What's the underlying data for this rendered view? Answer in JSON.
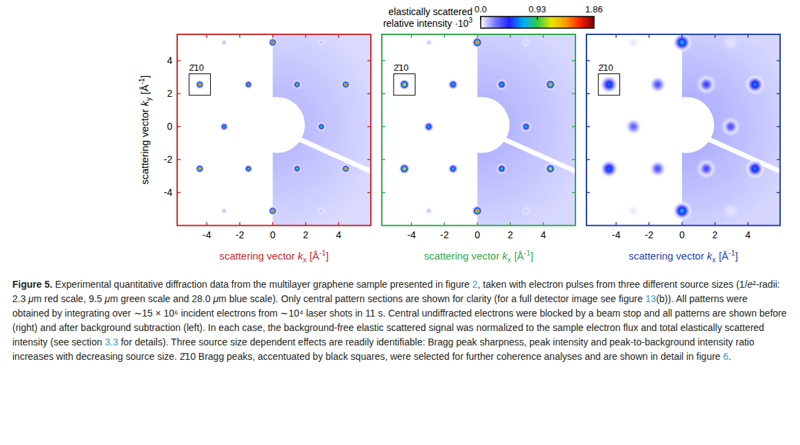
{
  "chart_data": [
    {
      "type": "scatter",
      "color": "#c8282d",
      "x_label": [
        {
          "text": "scattering vector "
        },
        {
          "text": "k",
          "style": "italic"
        },
        {
          "text": "x",
          "style": "sub"
        },
        {
          "text": " [Å"
        },
        {
          "text": "-1",
          "style": "sup"
        },
        {
          "text": "]"
        }
      ],
      "y_label": [
        {
          "text": "scattering vector "
        },
        {
          "text": "k",
          "style": "italic"
        },
        {
          "text": "y",
          "style": "sub"
        },
        {
          "text": " [Å"
        },
        {
          "text": "-1",
          "style": "sup"
        },
        {
          "text": "]"
        }
      ],
      "xlim": [
        -5.8,
        5.95
      ],
      "ylim": [
        -6.0,
        5.6
      ],
      "xticks": [
        -4,
        -2,
        0,
        2,
        4
      ],
      "yticks": [
        -4,
        -2,
        0,
        2,
        4
      ],
      "x": [
        0,
        -4.43,
        -1.475,
        1.475,
        4.43,
        -2.95,
        2.95,
        -4.43,
        -1.475,
        1.475,
        4.43,
        0,
        -2.95,
        2.95,
        -2.95,
        2.95
      ],
      "y": [
        5.11,
        2.555,
        2.555,
        2.555,
        2.555,
        0,
        0,
        -2.555,
        -2.555,
        -2.555,
        -2.555,
        -5.11,
        5.11,
        5.11,
        -5.11,
        -5.11
      ],
      "intensity": [
        1.7,
        1.6,
        1.0,
        1.1,
        1.6,
        0.9,
        1.0,
        1.5,
        1.0,
        1.05,
        1.55,
        1.65,
        0.12,
        0.12,
        0.12,
        0.12
      ],
      "peak_width": 0.09,
      "background_intensity": 0.14,
      "annotation": {
        "text": "2̄10",
        "x": -4.43,
        "y": 2.555
      }
    },
    {
      "type": "scatter",
      "color": "#2ea84a",
      "x_label": [
        {
          "text": "scattering vector "
        },
        {
          "text": "k",
          "style": "italic"
        },
        {
          "text": "x",
          "style": "sub"
        },
        {
          "text": " [Å"
        },
        {
          "text": "-1",
          "style": "sup"
        },
        {
          "text": "]"
        }
      ],
      "xlim": [
        -5.8,
        5.95
      ],
      "ylim": [
        -6.0,
        5.6
      ],
      "xticks": [
        -4,
        -2,
        0,
        2,
        4
      ],
      "yticks": [
        -4,
        -2,
        0,
        2,
        4
      ],
      "tick_labels": "x",
      "x": [
        0,
        -4.43,
        -1.475,
        1.475,
        4.43,
        -2.95,
        2.95,
        -4.43,
        -1.475,
        1.475,
        4.43,
        0,
        -2.95,
        2.95,
        -2.95,
        2.95
      ],
      "y": [
        5.11,
        2.555,
        2.555,
        2.555,
        2.555,
        0,
        0,
        -2.555,
        -2.555,
        -2.555,
        -2.555,
        -5.11,
        5.11,
        5.11,
        -5.11,
        -5.11
      ],
      "intensity": [
        1.6,
        1.45,
        0.85,
        0.9,
        1.5,
        0.8,
        0.85,
        1.4,
        0.85,
        0.9,
        1.4,
        1.6,
        0.1,
        0.1,
        0.1,
        0.1
      ],
      "peak_width": 0.11,
      "background_intensity": 0.15,
      "annotation": {
        "text": "2̄10",
        "x": -4.43,
        "y": 2.555
      }
    },
    {
      "type": "scatter",
      "color": "#1f3fae",
      "x_label": [
        {
          "text": "scattering vector "
        },
        {
          "text": "k",
          "style": "italic"
        },
        {
          "text": "x",
          "style": "sub"
        },
        {
          "text": " [Å"
        },
        {
          "text": "-1",
          "style": "sup"
        },
        {
          "text": "]"
        }
      ],
      "xlim": [
        -5.8,
        5.95
      ],
      "ylim": [
        -6.0,
        5.6
      ],
      "xticks": [
        -4,
        -2,
        0,
        2,
        4
      ],
      "yticks": [
        -4,
        -2,
        0,
        2,
        4
      ],
      "tick_labels": "x",
      "x": [
        0,
        -4.43,
        -1.475,
        1.475,
        4.43,
        -2.95,
        2.95,
        -4.43,
        -1.475,
        1.475,
        4.43,
        0,
        -2.95,
        2.95,
        -2.95,
        2.95
      ],
      "y": [
        5.11,
        2.555,
        2.555,
        2.555,
        2.555,
        0,
        0,
        -2.555,
        -2.555,
        -2.555,
        -2.555,
        -5.11,
        5.11,
        5.11,
        -5.11,
        -5.11
      ],
      "intensity": [
        0.75,
        0.6,
        0.35,
        0.4,
        0.65,
        0.3,
        0.35,
        0.6,
        0.35,
        0.38,
        0.62,
        0.75,
        0.05,
        0.05,
        0.05,
        0.05
      ],
      "peak_width": 0.2,
      "background_intensity": 0.16,
      "annotation": {
        "text": "2̄10",
        "x": -4.43,
        "y": 2.555
      }
    }
  ],
  "colorbar": {
    "label": [
      [
        {
          "text": "elastically scattered"
        }
      ],
      [
        {
          "text": "relative intensity ·10"
        },
        {
          "text": "3",
          "style": "sup"
        }
      ]
    ],
    "range": [
      0,
      1.86
    ],
    "ticks": [
      {
        "value": 0,
        "label": "0.0"
      },
      0.93,
      1.86
    ],
    "colors": [
      "#ffffff",
      "#7a7aff",
      "#2020ff",
      "#00aaff",
      "#30cc40",
      "#e6e600",
      "#ff9900",
      "#ff2000",
      "#7a0000"
    ]
  },
  "caption": [
    {
      "text": "Figure 5.",
      "style": "bold"
    },
    {
      "text": " Experimental quantitative diffraction data from the multilayer graphene sample presented in figure "
    },
    {
      "text": "2",
      "style": "link"
    },
    {
      "text": ", taken with electron pulses from three different source sizes (1/"
    },
    {
      "text": "e",
      "style": "italic"
    },
    {
      "text": "²-radii: 2.3 "
    },
    {
      "text": "μ",
      "style": "italic"
    },
    {
      "text": "m red scale, 9.5 "
    },
    {
      "text": "μ",
      "style": "italic"
    },
    {
      "text": "m green scale and 28.0 "
    },
    {
      "text": "μ",
      "style": "italic"
    },
    {
      "text": "m blue scale). Only central pattern sections are shown for clarity (for a full detector image see figure "
    },
    {
      "text": "13",
      "style": "link"
    },
    {
      "text": "(b)). All patterns were obtained by integrating over ∼15 × 10⁶ incident electrons from ∼10⁴ laser shots in 11 s. Central undiffracted electrons were blocked by a beam stop and all patterns are shown before (right) and after background subtraction (left). In each case, the background-free elastic scattered signal was normalized to the sample electron flux and total elastically scattered intensity (see section "
    },
    {
      "text": "3.3",
      "style": "link"
    },
    {
      "text": " for details). Three source size dependent effects are readily identifiable: Bragg peak sharpness, peak intensity and peak-to-background intensity ratio increases with decreasing source size. 2̄10 Bragg peaks, accentuated by black squares, were selected for further coherence analyses and are shown in detail in figure "
    },
    {
      "text": "6",
      "style": "link"
    },
    {
      "text": "."
    }
  ]
}
